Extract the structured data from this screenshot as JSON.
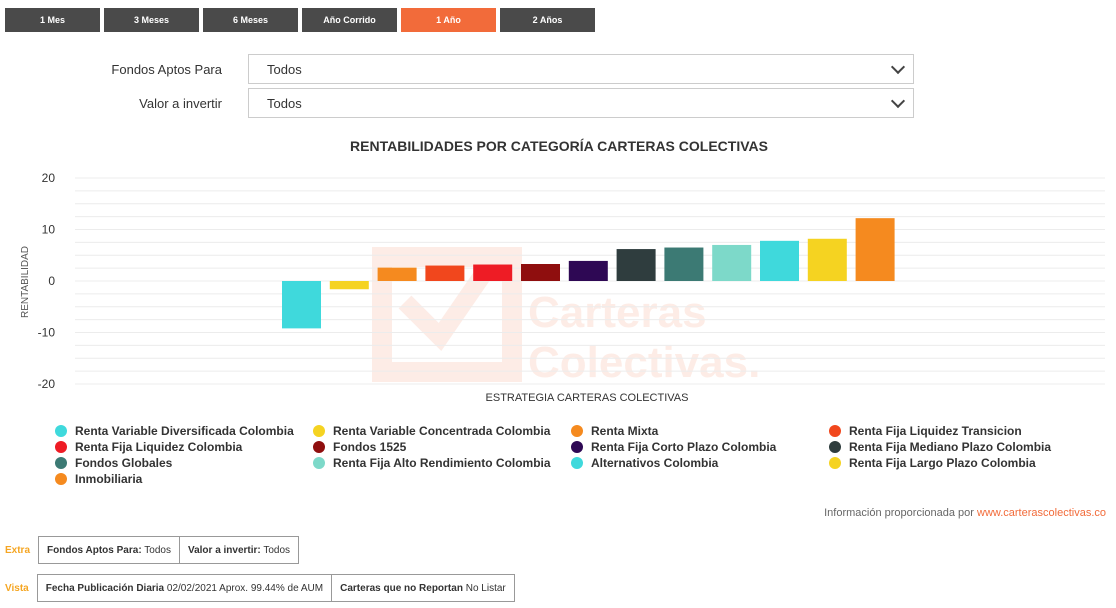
{
  "tabs": [
    "1 Mes",
    "3 Meses",
    "6 Meses",
    "Año Corrido",
    "1 Año",
    "2 Años"
  ],
  "active_tab": "1 Año",
  "filters": [
    {
      "label": "Fondos Aptos Para",
      "value": "Todos"
    },
    {
      "label": "Valor a invertir",
      "value": "Todos"
    }
  ],
  "credit": {
    "text": "Información proporcionada por ",
    "link": "www.carterascolectivas.co"
  },
  "info": {
    "row1_side": "Extra",
    "fondos_label": "Fondos Aptos Para:",
    "fondos_value": "Todos",
    "valor_label": "Valor a invertir:",
    "valor_value": "Todos",
    "row2_side": "Vista",
    "fecha_label": "Fecha Publicación Diaria",
    "fecha_value": "02/02/2021 Aprox. 99.44% de AUM",
    "carteras_label": "Carteras que no Reportan",
    "carteras_value": "No Listar"
  },
  "watermark": [
    "Carteras",
    "Colectivas."
  ],
  "chart_data": {
    "type": "bar",
    "title": "RENTABILIDADES POR CATEGORÍA CARTERAS COLECTIVAS",
    "xlabel": "ESTRATEGIA CARTERAS COLECTIVAS",
    "ylabel": "RENTABILIDAD",
    "ylim": [
      -20,
      20
    ],
    "yticks": [
      -20,
      -10,
      0,
      10,
      20
    ],
    "grid": true,
    "legend_position": "bottom",
    "series": [
      {
        "name": "Renta Variable Diversificada Colombia",
        "value": -9.2,
        "color": "#3fd9dc"
      },
      {
        "name": "Renta Variable Concentrada Colombia",
        "value": -1.6,
        "color": "#f5d321"
      },
      {
        "name": "Renta Mixta",
        "value": 2.6,
        "color": "#f58a1f"
      },
      {
        "name": "Renta Fija Liquidez Transicion",
        "value": 3.0,
        "color": "#f1471d"
      },
      {
        "name": "Renta Fija Liquidez Colombia",
        "value": 3.2,
        "color": "#ee1c25"
      },
      {
        "name": "Fondos 1525",
        "value": 3.3,
        "color": "#8f0e0e"
      },
      {
        "name": "Renta Fija Corto Plazo Colombia",
        "value": 3.9,
        "color": "#2e0854"
      },
      {
        "name": "Renta Fija Mediano Plazo Colombia",
        "value": 6.2,
        "color": "#2f3d3e"
      },
      {
        "name": "Fondos Globales",
        "value": 6.5,
        "color": "#3c7a74"
      },
      {
        "name": "Renta Fija Alto Rendimiento Colombia",
        "value": 7.0,
        "color": "#7dd9c9"
      },
      {
        "name": "Alternativos Colombia",
        "value": 7.8,
        "color": "#3fd9dc"
      },
      {
        "name": "Renta Fija Largo Plazo Colombia",
        "value": 8.2,
        "color": "#f5d321"
      },
      {
        "name": "Inmobiliaria",
        "value": 12.2,
        "color": "#f58a1f"
      }
    ]
  }
}
